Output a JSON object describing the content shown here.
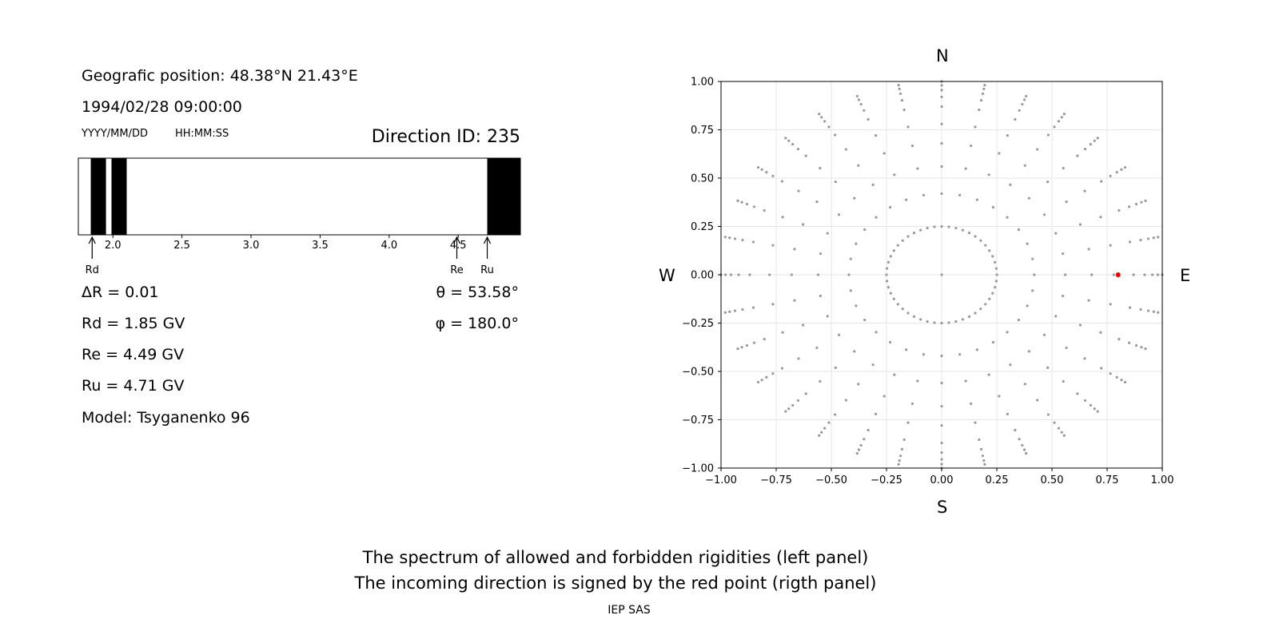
{
  "left_panel": {
    "position": "Geografic position: 48.38°N 21.43°E",
    "datetime": "1994/02/28 09:00:00",
    "date_format": "YYYY/MM/DD",
    "time_format": "HH:MM:SS",
    "direction": "Direction ID: 235",
    "delta_r": "ΔR = 0.01",
    "rd": "Rd = 1.85 GV",
    "re": "Re = 4.49 GV",
    "ru": "Ru = 4.71 GV",
    "model": "Model: Tsyganenko 96",
    "theta": "θ = 53.58°",
    "phi": "φ = 180.0°"
  },
  "right_panel": {
    "north": "N",
    "south": "S",
    "west": "W",
    "east": "E"
  },
  "caption": {
    "line1": "The spectrum of allowed and forbidden rigidities (left panel)",
    "line2": "The incoming direction is signed by the red point (rigth panel)",
    "credit": "IEP SAS"
  },
  "colors": {
    "forbidden": "#000000",
    "allowed": "#ffffff",
    "grid_point": "#999999",
    "selected_point": "#ee0000",
    "grid_line": "#e6e6e6"
  },
  "chart_data": [
    {
      "type": "bar",
      "title": "",
      "xlim": [
        1.75,
        4.95
      ],
      "xticks": [
        2.0,
        2.5,
        3.0,
        3.5,
        4.0,
        4.5
      ],
      "forbidden_bands": [
        [
          1.84,
          1.95
        ],
        [
          1.99,
          2.1
        ],
        [
          4.71,
          4.95
        ]
      ],
      "markers": [
        {
          "label": "Rd",
          "value": 1.85
        },
        {
          "label": "Re",
          "value": 4.49
        },
        {
          "label": "Ru",
          "value": 4.71
        }
      ]
    },
    {
      "type": "scatter",
      "title": "",
      "xlim": [
        -1.0,
        1.0
      ],
      "ylim": [
        -1.0,
        1.0
      ],
      "xticks": [
        -1.0,
        -0.75,
        -0.5,
        -0.25,
        0.0,
        0.25,
        0.5,
        0.75,
        1.0
      ],
      "yticks": [
        1.0,
        0.75,
        0.5,
        0.25,
        0.0,
        -0.25,
        -0.5,
        -0.75,
        -1.0
      ],
      "grid": true,
      "rays": 32,
      "ring_radii": [
        0.25,
        0.42,
        0.56,
        0.68,
        0.78,
        0.87,
        0.92,
        0.955,
        0.98,
        1.0
      ],
      "ring_dense_radius": 0.25,
      "ring_dense_count": 48,
      "selected": {
        "x": 0.8,
        "y": 0.0
      }
    }
  ]
}
